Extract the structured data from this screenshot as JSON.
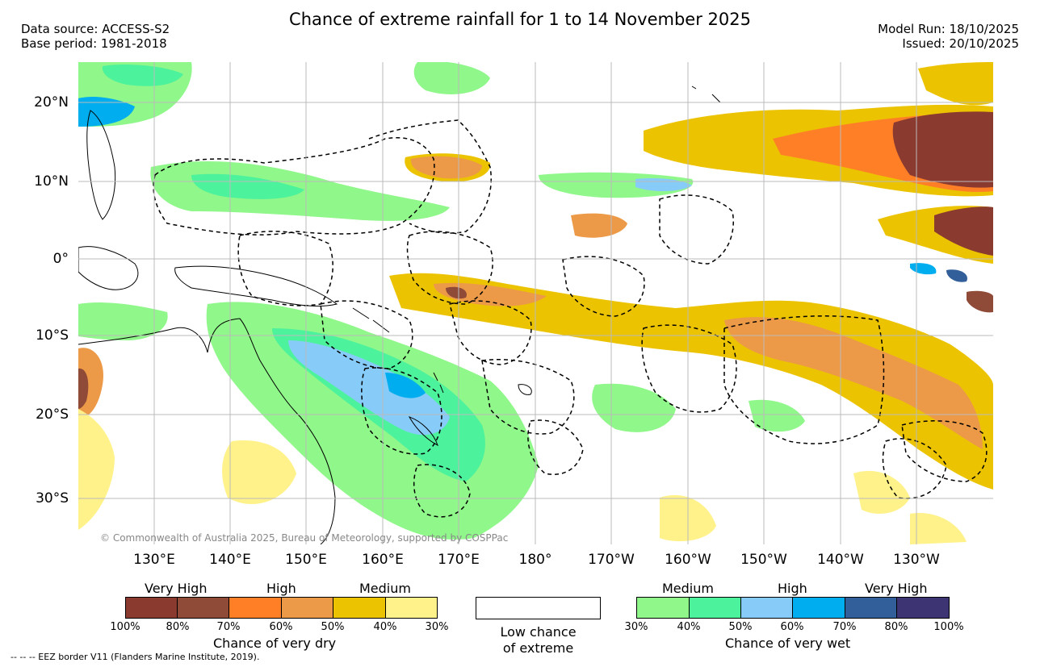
{
  "title": "Chance of extreme rainfall for 1 to 14 November 2025",
  "data_source": "Data source: ACCESS-S2",
  "base_period": "Base period: 1981-2018",
  "model_run": "Model Run: 18/10/2025",
  "issued": "Issued: 20/10/2025",
  "lat_ticks": [
    "20°N",
    "10°N",
    "0°",
    "10°S",
    "20°S",
    "30°S"
  ],
  "lon_ticks": [
    "130°E",
    "140°E",
    "150°E",
    "160°E",
    "170°E",
    "180°",
    "170°W",
    "160°W",
    "150°W",
    "140°W",
    "130°W"
  ],
  "copyright": "© Commonwealth of Australia 2025, Bureau of Meteorology, supported by COSPPac",
  "eez_note": "-- -- -- EEZ border V11 (Flanders Marine Institute, 2019).",
  "dry_legend": {
    "headings": [
      "Very High",
      "High",
      "Medium"
    ],
    "ticks": [
      "100%",
      "80%",
      "70%",
      "60%",
      "50%",
      "40%",
      "30%"
    ],
    "colors": [
      "#8b3a2f",
      "#8f4a38",
      "#ff7f27",
      "#ec9a48",
      "#ecc300",
      "#fff28a"
    ],
    "caption": "Chance of very dry"
  },
  "low_legend": {
    "line1": "Low chance",
    "line2": "of extreme"
  },
  "wet_legend": {
    "headings": [
      "Medium",
      "High",
      "Very High"
    ],
    "ticks": [
      "30%",
      "40%",
      "50%",
      "60%",
      "70%",
      "80%",
      "100%"
    ],
    "colors": [
      "#90f78a",
      "#4df29d",
      "#87cbf9",
      "#00aeef",
      "#325f99",
      "#3d3473"
    ],
    "caption": "Chance of very wet"
  }
}
